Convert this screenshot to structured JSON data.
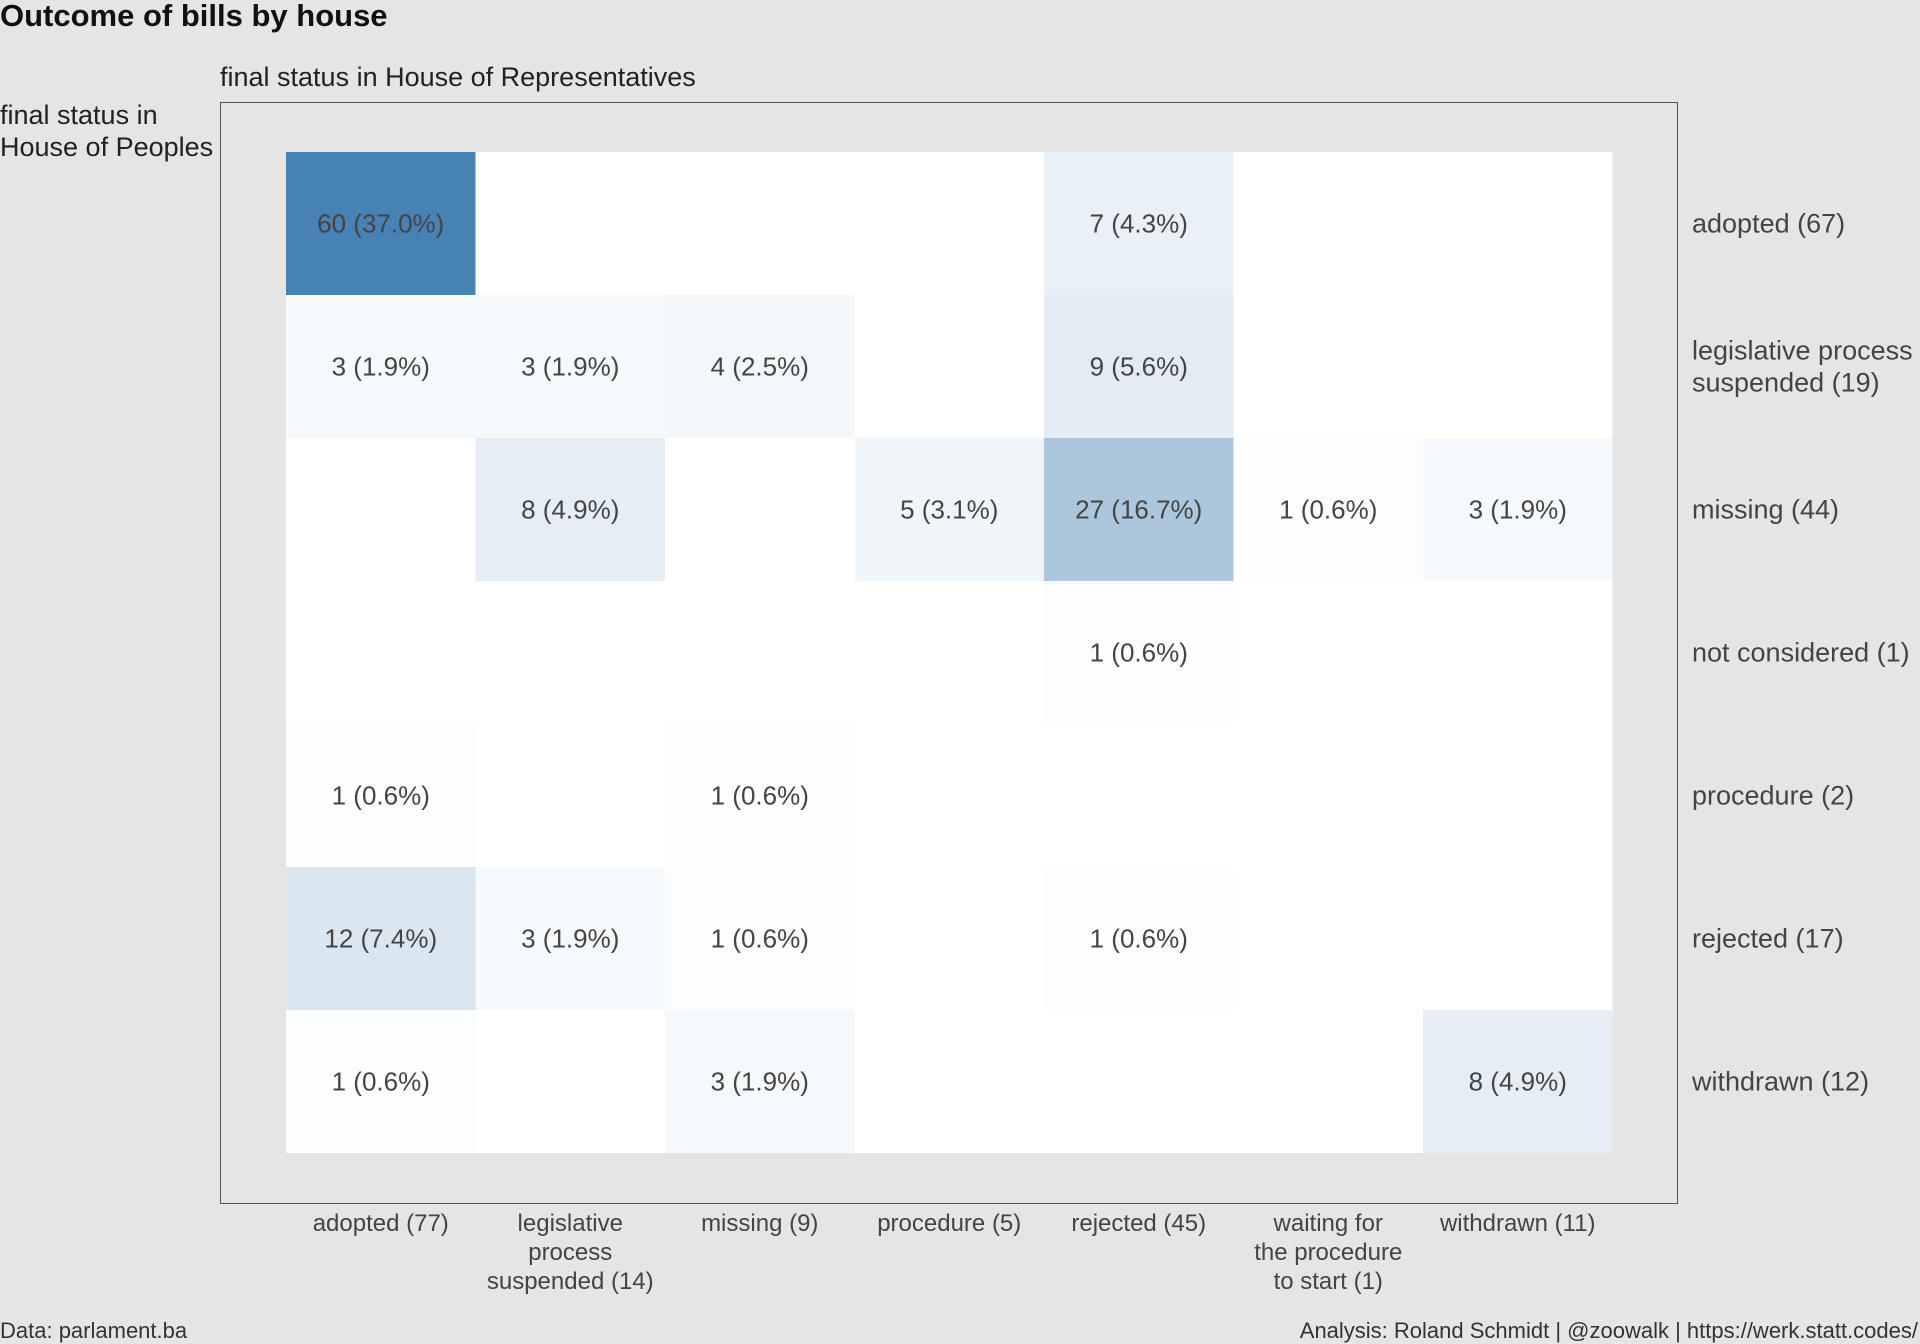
{
  "chart_data": {
    "type": "heatmap",
    "title": "Outcome of bills by house",
    "xlabel": "final status in House of Representatives",
    "ylabel": "final status in\nHouse of Peoples",
    "x_categories": [
      "adopted (77)",
      "legislative\nprocess\nsuspended (14)",
      "missing (9)",
      "procedure (5)",
      "rejected (45)",
      "waiting for\nthe procedure\nto start (1)",
      "withdrawn (11)"
    ],
    "y_categories": [
      "adopted (67)",
      "legislative process\nsuspended (19)",
      "missing (44)",
      "not considered (1)",
      "procedure (2)",
      "rejected (17)",
      "withdrawn (12)"
    ],
    "cells": [
      {
        "x": 0,
        "y": 0,
        "count": 60,
        "label": "60 (37.0%)"
      },
      {
        "x": 4,
        "y": 0,
        "count": 7,
        "label": "7 (4.3%)"
      },
      {
        "x": 0,
        "y": 1,
        "count": 3,
        "label": "3 (1.9%)"
      },
      {
        "x": 1,
        "y": 1,
        "count": 3,
        "label": "3 (1.9%)"
      },
      {
        "x": 2,
        "y": 1,
        "count": 4,
        "label": "4 (2.5%)"
      },
      {
        "x": 4,
        "y": 1,
        "count": 9,
        "label": "9 (5.6%)"
      },
      {
        "x": 1,
        "y": 2,
        "count": 8,
        "label": "8 (4.9%)"
      },
      {
        "x": 3,
        "y": 2,
        "count": 5,
        "label": "5 (3.1%)"
      },
      {
        "x": 4,
        "y": 2,
        "count": 27,
        "label": "27 (16.7%)"
      },
      {
        "x": 5,
        "y": 2,
        "count": 1,
        "label": "1 (0.6%)"
      },
      {
        "x": 6,
        "y": 2,
        "count": 3,
        "label": "3 (1.9%)"
      },
      {
        "x": 4,
        "y": 3,
        "count": 1,
        "label": "1 (0.6%)"
      },
      {
        "x": 0,
        "y": 4,
        "count": 1,
        "label": "1 (0.6%)"
      },
      {
        "x": 2,
        "y": 4,
        "count": 1,
        "label": "1 (0.6%)"
      },
      {
        "x": 0,
        "y": 5,
        "count": 12,
        "label": "12 (7.4%)"
      },
      {
        "x": 1,
        "y": 5,
        "count": 3,
        "label": "3 (1.9%)"
      },
      {
        "x": 2,
        "y": 5,
        "count": 1,
        "label": "1 (0.6%)"
      },
      {
        "x": 4,
        "y": 5,
        "count": 1,
        "label": "1 (0.6%)"
      },
      {
        "x": 0,
        "y": 6,
        "count": 1,
        "label": "1 (0.6%)"
      },
      {
        "x": 2,
        "y": 6,
        "count": 3,
        "label": "3 (1.9%)"
      },
      {
        "x": 6,
        "y": 6,
        "count": 8,
        "label": "8 (4.9%)"
      }
    ],
    "color_low": "#ffffff",
    "color_high": "#4682b4",
    "caption_left": "Data: parlament.ba",
    "caption_right": "Analysis: Roland Schmidt | @zoowalk | https://werk.statt.codes/"
  }
}
